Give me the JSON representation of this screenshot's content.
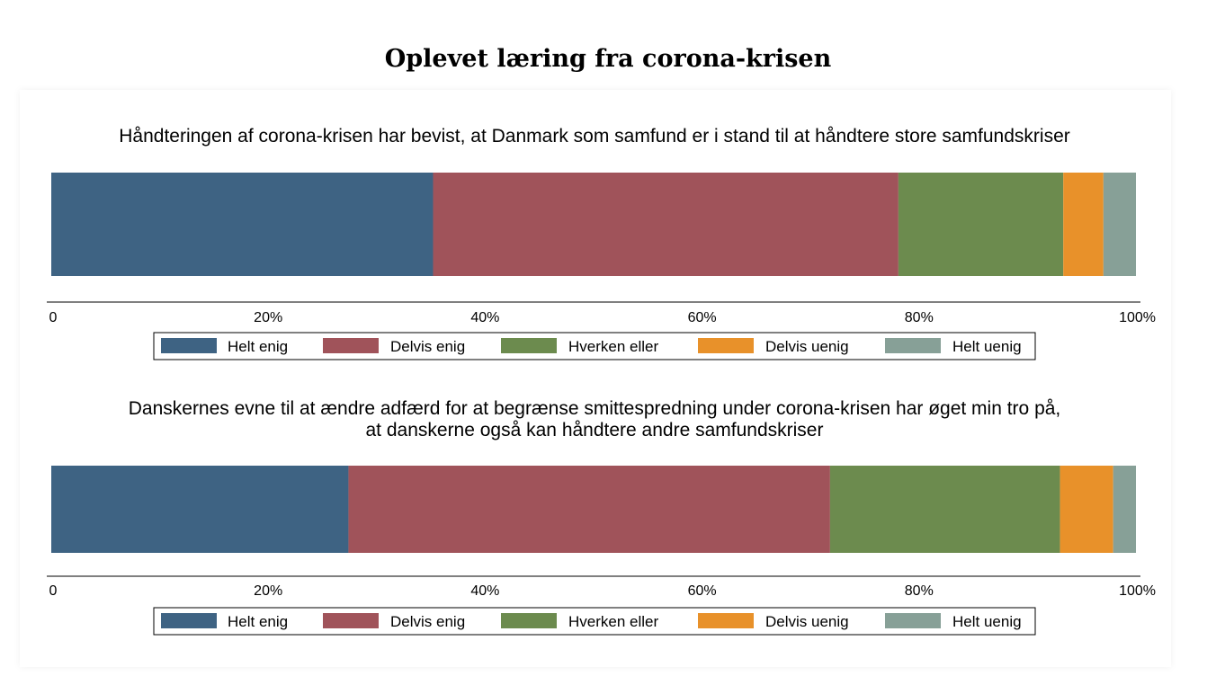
{
  "title": "Oplevet læring fra corona-krisen",
  "chart_data": [
    {
      "type": "bar",
      "orientation": "horizontal-stacked-100",
      "title_lines": [
        "Håndteringen af corona-krisen har bevist, at Danmark som samfund er i stand til at håndtere store samfundskriser"
      ],
      "x_ticks": [
        "0",
        "20%",
        "40%",
        "60%",
        "80%",
        "100%"
      ],
      "xlim": [
        0,
        100
      ],
      "grid": false,
      "legend_position": "bottom",
      "series": [
        {
          "name": "Helt enig",
          "values": [
            35.2
          ],
          "color": "#3e6383"
        },
        {
          "name": "Delvis enig",
          "values": [
            42.9
          ],
          "color": "#a0535a"
        },
        {
          "name": "Hverken eller",
          "values": [
            15.2
          ],
          "color": "#6c8b4e"
        },
        {
          "name": "Delvis uenig",
          "values": [
            3.7
          ],
          "color": "#e8912a"
        },
        {
          "name": "Helt uenig",
          "values": [
            3.0
          ],
          "color": "#87a097"
        }
      ]
    },
    {
      "type": "bar",
      "orientation": "horizontal-stacked-100",
      "title_lines": [
        "Danskernes evne til at ændre adfærd for at begrænse smittespredning under corona-krisen har øget min tro på,",
        "at danskerne også kan håndtere andre samfundskriser"
      ],
      "x_ticks": [
        "0",
        "20%",
        "40%",
        "60%",
        "80%",
        "100%"
      ],
      "xlim": [
        0,
        100
      ],
      "grid": false,
      "legend_position": "bottom",
      "series": [
        {
          "name": "Helt enig",
          "values": [
            27.4
          ],
          "color": "#3e6383"
        },
        {
          "name": "Delvis enig",
          "values": [
            44.4
          ],
          "color": "#a0535a"
        },
        {
          "name": "Hverken eller",
          "values": [
            21.2
          ],
          "color": "#6c8b4e"
        },
        {
          "name": "Delvis uenig",
          "values": [
            4.9
          ],
          "color": "#e8912a"
        },
        {
          "name": "Helt uenig",
          "values": [
            2.1
          ],
          "color": "#87a097"
        }
      ]
    }
  ]
}
